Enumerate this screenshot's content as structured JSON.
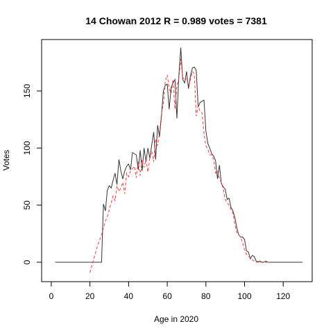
{
  "chart_data": {
    "type": "line",
    "title": "14 Chowan 2012 R = 0.989 votes = 7381",
    "xlabel": "Age in 2020",
    "ylabel": "Votes",
    "xlim": [
      -5,
      135
    ],
    "ylim": [
      -17,
      195
    ],
    "xticks": [
      0,
      20,
      40,
      60,
      80,
      100,
      120
    ],
    "yticks": [
      0,
      50,
      100,
      150
    ],
    "grid": false,
    "colors": {
      "series_actual": "#333333",
      "series_model": "#ff3333",
      "frame": "#000000"
    },
    "series": [
      {
        "style": "solid",
        "x": [
          2,
          26,
          27,
          28,
          29,
          30,
          31,
          32,
          33,
          34,
          35,
          36,
          37,
          38,
          39,
          40,
          41,
          42,
          43,
          44,
          45,
          46,
          47,
          48,
          49,
          50,
          51,
          52,
          53,
          54,
          55,
          56,
          57,
          58,
          59,
          60,
          61,
          62,
          63,
          64,
          65,
          66,
          67,
          68,
          69,
          70,
          71,
          72,
          73,
          74,
          75,
          76,
          77,
          78,
          79,
          80,
          81,
          82,
          83,
          84,
          85,
          86,
          87,
          88,
          89,
          90,
          91,
          92,
          93,
          94,
          95,
          96,
          97,
          98,
          99,
          100,
          101,
          102,
          103,
          104,
          105,
          106,
          107,
          108,
          109,
          110,
          111,
          112,
          113,
          114,
          130
        ],
        "values": [
          0,
          0,
          51,
          45,
          63,
          67,
          65,
          72,
          78,
          68,
          90,
          80,
          73,
          80,
          84,
          86,
          81,
          96,
          95,
          94,
          81,
          98,
          80,
          100,
          88,
          100,
          91,
          103,
          114,
          90,
          120,
          110,
          128,
          150,
          155,
          156,
          134,
          153,
          157,
          160,
          126,
          163,
          188,
          160,
          157,
          167,
          152,
          163,
          170,
          171,
          168,
          136,
          140,
          141,
          142,
          115,
          104,
          100,
          95,
          93,
          89,
          73,
          85,
          69,
          66,
          64,
          55,
          56,
          48,
          45,
          39,
          30,
          24,
          22,
          22,
          20,
          10,
          9,
          3,
          6,
          5,
          1,
          0,
          1,
          0,
          0,
          1,
          0,
          0,
          0,
          0
        ]
      },
      {
        "style": "dashed",
        "x": [
          20,
          22,
          24,
          26,
          28,
          29,
          30,
          31,
          32,
          33,
          34,
          35,
          36,
          37,
          38,
          39,
          40,
          41,
          42,
          43,
          44,
          45,
          46,
          47,
          48,
          49,
          50,
          51,
          52,
          53,
          54,
          55,
          56,
          57,
          58,
          59,
          60,
          61,
          62,
          63,
          64,
          65,
          66,
          67,
          68,
          69,
          70,
          71,
          72,
          73,
          74,
          75,
          76,
          77,
          78,
          79,
          80,
          81,
          82,
          83,
          84,
          85,
          86,
          87,
          88,
          89,
          90,
          91,
          92,
          93,
          94,
          95,
          96,
          97,
          98,
          99,
          100,
          101,
          102,
          103,
          104,
          105,
          106,
          107,
          108,
          109,
          110,
          111,
          112,
          113
        ],
        "values": [
          -9,
          3,
          15,
          24,
          36,
          40,
          46,
          52,
          58,
          54,
          67,
          62,
          65,
          70,
          60,
          78,
          75,
          80,
          82,
          84,
          74,
          88,
          76,
          90,
          83,
          90,
          79,
          92,
          97,
          88,
          108,
          102,
          113,
          130,
          139,
          159,
          164,
          152,
          148,
          160,
          134,
          155,
          161,
          178,
          162,
          159,
          161,
          155,
          160,
          167,
          165,
          128,
          137,
          132,
          131,
          113,
          102,
          99,
          94,
          94,
          90,
          78,
          80,
          73,
          70,
          64,
          55,
          52,
          50,
          46,
          43,
          33,
          26,
          24,
          22,
          17,
          11,
          7,
          5,
          4,
          2,
          1,
          0,
          1,
          0,
          0,
          1,
          0,
          0,
          0
        ]
      }
    ]
  }
}
